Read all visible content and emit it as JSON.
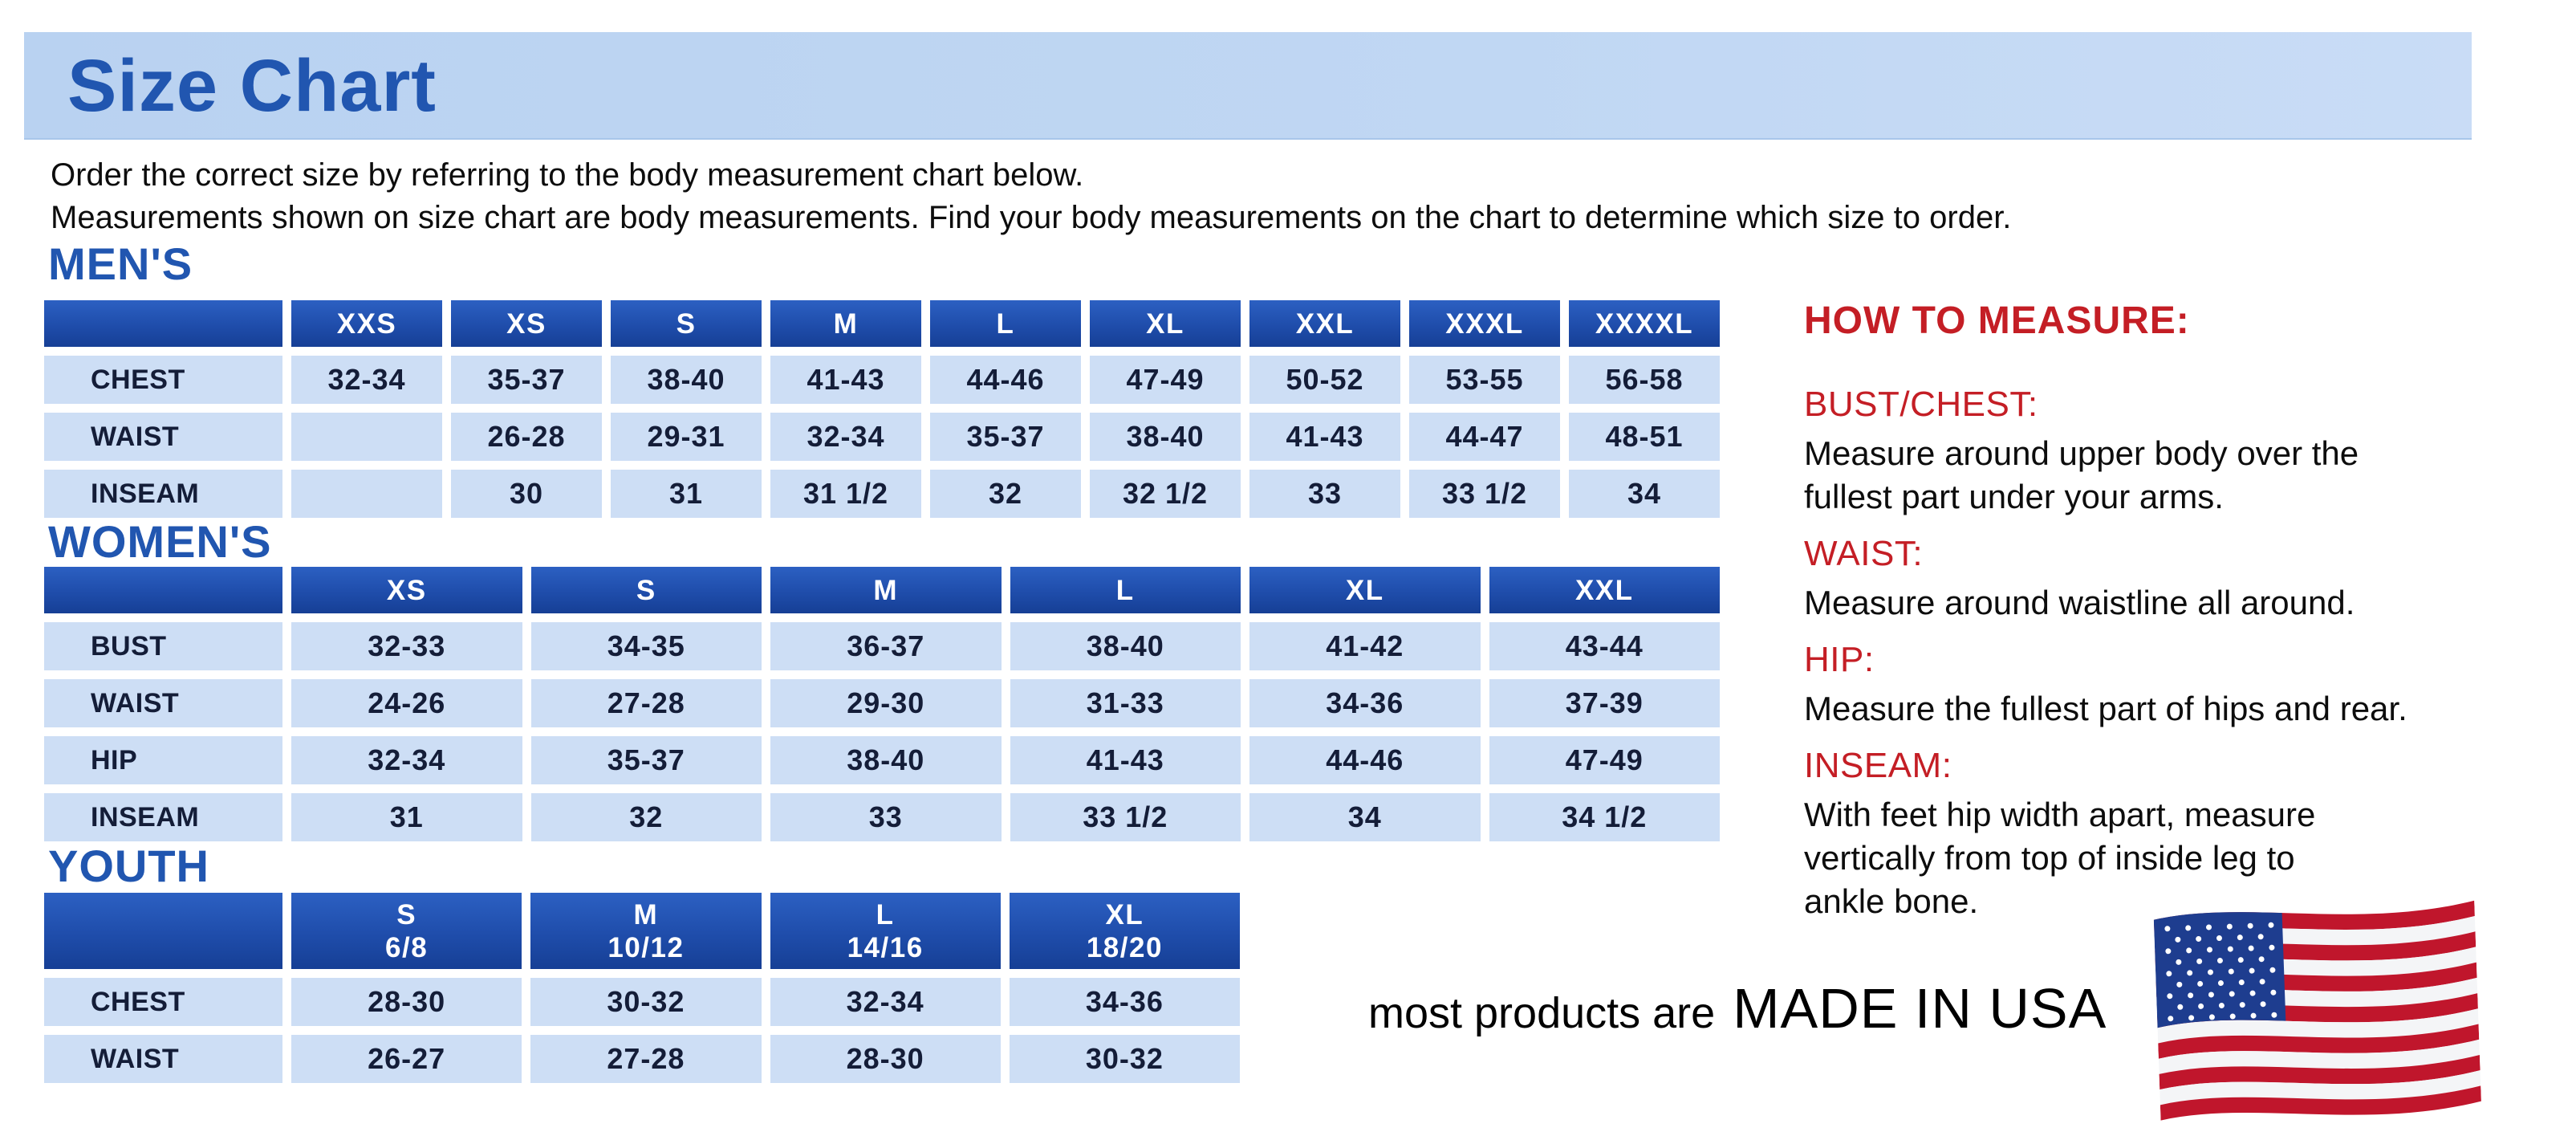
{
  "title": "Size Chart",
  "intro": {
    "lines": [
      "Order the correct size by referring to the body measurement chart below.",
      "Measurements shown on size chart are body measurements.  Find your body measurements on the chart to determine which size to order."
    ]
  },
  "tables": [
    {
      "id": "mens",
      "section_label": "MEN'S",
      "columns": [
        "XXS",
        "XS",
        "S",
        "M",
        "L",
        "XL",
        "XXL",
        "XXXL",
        "XXXXL"
      ],
      "rows": [
        {
          "label": "CHEST",
          "values": [
            "32-34",
            "35-37",
            "38-40",
            "41-43",
            "44-46",
            "47-49",
            "50-52",
            "53-55",
            "56-58"
          ]
        },
        {
          "label": "WAIST",
          "values": [
            "",
            "26-28",
            "29-31",
            "32-34",
            "35-37",
            "38-40",
            "41-43",
            "44-47",
            "48-51"
          ]
        },
        {
          "label": "INSEAM",
          "values": [
            "",
            "30",
            "31",
            "31 1/2",
            "32",
            "32 1/2",
            "33",
            "33 1/2",
            "34"
          ]
        }
      ]
    },
    {
      "id": "womens",
      "section_label": "WOMEN'S",
      "columns": [
        "XS",
        "S",
        "M",
        "L",
        "XL",
        "XXL"
      ],
      "rows": [
        {
          "label": "BUST",
          "values": [
            "32-33",
            "34-35",
            "36-37",
            "38-40",
            "41-42",
            "43-44"
          ]
        },
        {
          "label": "WAIST",
          "values": [
            "24-26",
            "27-28",
            "29-30",
            "31-33",
            "34-36",
            "37-39"
          ]
        },
        {
          "label": "HIP",
          "values": [
            "32-34",
            "35-37",
            "38-40",
            "41-43",
            "44-46",
            "47-49"
          ]
        },
        {
          "label": "INSEAM",
          "values": [
            "31",
            "32",
            "33",
            "33 1/2",
            "34",
            "34 1/2"
          ]
        }
      ]
    },
    {
      "id": "youth",
      "section_label": "YOUTH",
      "columns": [
        {
          "label": "S",
          "sub": "6/8"
        },
        {
          "label": "M",
          "sub": "10/12"
        },
        {
          "label": "L",
          "sub": "14/16"
        },
        {
          "label": "XL",
          "sub": "18/20"
        }
      ],
      "rows": [
        {
          "label": "CHEST",
          "values": [
            "28-30",
            "30-32",
            "32-34",
            "34-36"
          ]
        },
        {
          "label": "WAIST",
          "values": [
            "26-27",
            "27-28",
            "28-30",
            "30-32"
          ]
        }
      ]
    }
  ],
  "how_to_measure": {
    "heading": "HOW TO MEASURE:",
    "items": [
      {
        "term": "BUST/CHEST:",
        "lines": [
          "Measure around upper body over the",
          "fullest part under your arms."
        ]
      },
      {
        "term": "WAIST:",
        "lines": [
          "Measure around waistline all around."
        ]
      },
      {
        "term": "HIP:",
        "lines": [
          "Measure the fullest part of hips and rear."
        ]
      },
      {
        "term": "INSEAM:",
        "lines": [
          "With feet hip width apart, measure",
          "vertically from top of inside leg to",
          "ankle bone."
        ]
      }
    ]
  },
  "footer": {
    "prefix": "most products are",
    "made_in": "MADE IN USA",
    "flag_icon": "usa-flag-icon"
  },
  "colors": {
    "banner_bg": "#bcd4f2",
    "heading_blue": "#2156b0",
    "table_header_blue": "#1f4dab",
    "table_cell_blue": "#cddef5",
    "cell_text_navy": "#141d38",
    "accent_red": "#c41e25",
    "text_black": "#0d0d0d"
  },
  "flag": {
    "stripes": 13,
    "colors": {
      "red": "#c0162c",
      "white": "#f4f5f7",
      "blue": "#1e3d8f",
      "star": "#ffffff"
    }
  }
}
